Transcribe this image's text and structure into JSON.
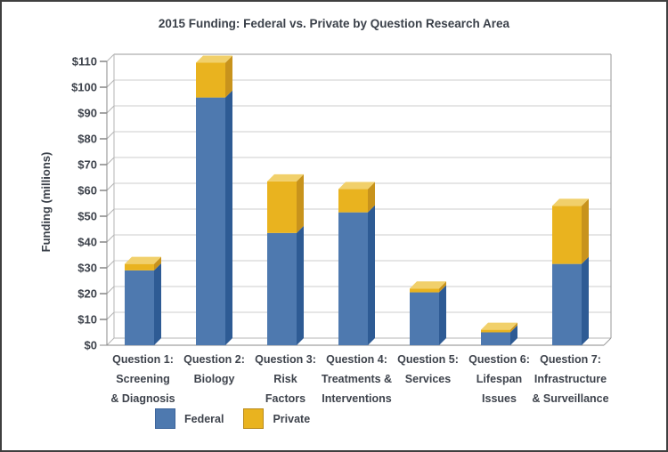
{
  "chart_data": {
    "type": "bar",
    "stacked": true,
    "style": "3d",
    "title": "2015 Funding: Federal vs. Private by Question Research Area",
    "xlabel": "",
    "ylabel": "Funding (millions)",
    "ylim": [
      0,
      110
    ],
    "ytick_interval": 10,
    "ytick_labels": [
      "$0",
      "$10",
      "$20",
      "$30",
      "$40",
      "$50",
      "$60",
      "$70",
      "$80",
      "$90",
      "$100",
      "$110"
    ],
    "grid": true,
    "legend_position": "bottom-left",
    "categories": [
      "Question 1: Screening & Diagnosis",
      "Question 2: Biology",
      "Question 3: Risk Factors",
      "Question 4: Treatments & Interventions",
      "Question 5: Services",
      "Question 6: Lifespan Issues",
      "Question 7: Infrastructure & Surveillance"
    ],
    "categories_lines": [
      [
        "Question 1:",
        "Screening",
        "& Diagnosis"
      ],
      [
        "Question 2:",
        "Biology"
      ],
      [
        "Question 3:",
        "Risk",
        "Factors"
      ],
      [
        "Question 4:",
        "Treatments &",
        "Interventions"
      ],
      [
        "Question 5:",
        "Services"
      ],
      [
        "Question 6:",
        "Lifespan",
        "Issues"
      ],
      [
        "Question 7:",
        "Infrastructure",
        "& Surveillance"
      ]
    ],
    "series": [
      {
        "name": "Federal",
        "color": "#4e79af",
        "values": [
          29,
          96,
          43.5,
          51.5,
          20.5,
          5,
          31.5
        ]
      },
      {
        "name": "Private",
        "color": "#e9b31f",
        "values": [
          2.5,
          13.5,
          20,
          9,
          1.5,
          1,
          22.5
        ]
      }
    ],
    "totals": [
      31.5,
      109.5,
      63.5,
      60.5,
      22,
      6,
      54
    ]
  },
  "colors": {
    "federal": "#4e79af",
    "federal_dark": "#2e5b94",
    "private": "#e9b31f",
    "private_dark": "#c8931c",
    "private_top": "#f1d06b",
    "grid": "#cdcdcd",
    "grid_dark": "#b5b5b5",
    "axis_dark": "#9a9a9a",
    "floor": "#8a8a8a",
    "tick": "#4a4a4a",
    "text": "#3e434c",
    "federal_border": "#3c649b",
    "private_border": "#b8891a"
  }
}
